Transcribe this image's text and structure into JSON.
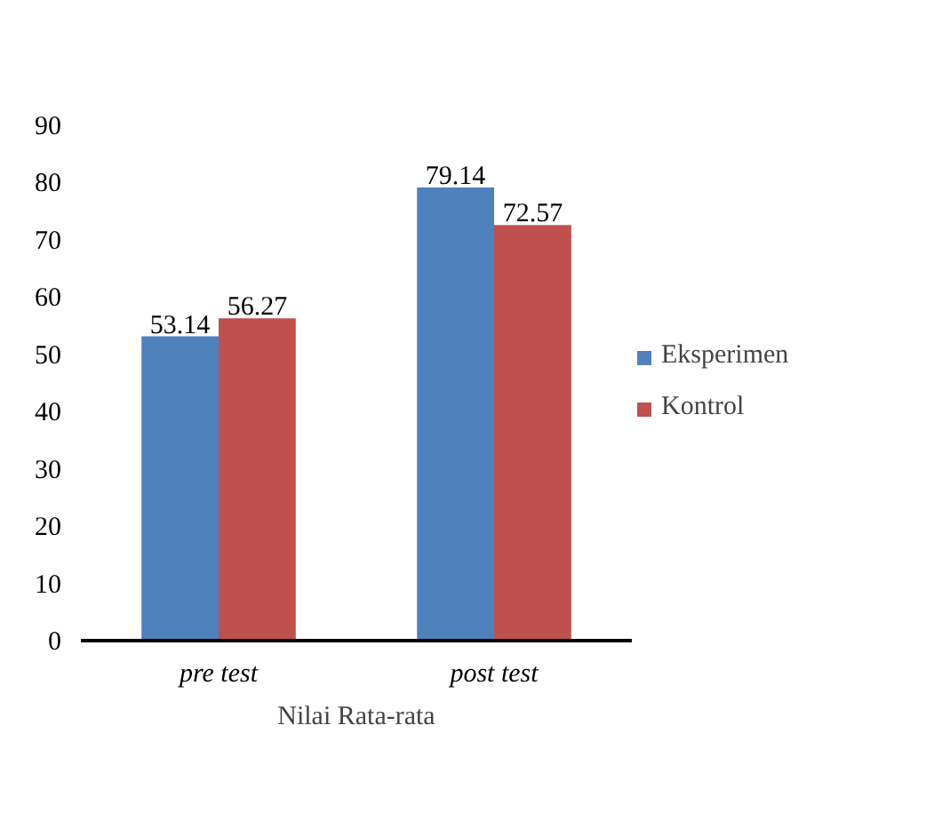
{
  "chart_data": {
    "type": "bar",
    "xlabel": "Nilai Rata-rata",
    "categories": [
      "pre test",
      "post test"
    ],
    "series": [
      {
        "name": "Eksperimen",
        "color": "#4f81bd",
        "values": [
          53.14,
          79.14
        ]
      },
      {
        "name": "Kontrol",
        "color": "#c0504d",
        "values": [
          56.27,
          72.57
        ]
      }
    ],
    "ylim": [
      0,
      90
    ],
    "yticks": [
      0,
      10,
      20,
      30,
      40,
      50,
      60,
      70,
      80,
      90
    ],
    "data_labels": true,
    "legend": "right",
    "grid": false
  }
}
